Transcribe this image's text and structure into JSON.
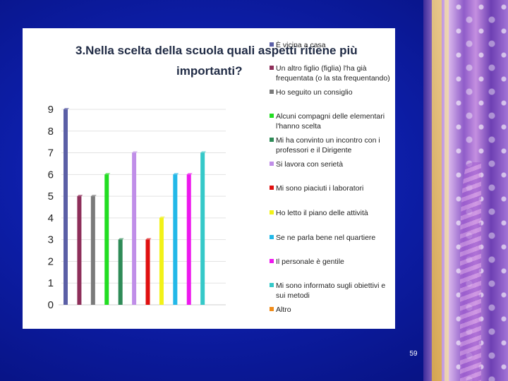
{
  "slide": {
    "page_number": "59"
  },
  "chart_data": {
    "type": "bar",
    "title_lines": [
      "3.Nella scelta della scuola quali aspetti ritiene più",
      "importanti?"
    ],
    "xlabel": "",
    "ylabel": "",
    "ylim": [
      0,
      9
    ],
    "y_ticks": [
      "0",
      "1",
      "2",
      "3",
      "4",
      "5",
      "6",
      "7",
      "8",
      "9"
    ],
    "grid": true,
    "legend_position": "right",
    "categories": [
      "È vicina a casa",
      "Un altro figlio (figlia) l'ha già frequentata (o la sta frequentando)",
      "Ho seguito un consiglio",
      "Alcuni compagni delle elementari l'hanno scelta",
      "Mi ha convinto un incontro con i professori e il Dirigente",
      "Si lavora con serietà",
      "Mi sono piaciuti i laboratori",
      "Ho letto il piano delle attività",
      "Se ne parla bene nel quartiere",
      "Il personale è gentile",
      "Mi sono informato sugli obiettivi e sui metodi",
      "Altro"
    ],
    "series": [
      {
        "name": "È vicina a casa",
        "value": 9,
        "color": "#5b5fa6"
      },
      {
        "name": "Un altro figlio (figlia) l'ha già frequentata (o la sta frequentando)",
        "value": 5,
        "color": "#8e2f5a"
      },
      {
        "name": "Ho seguito un consiglio",
        "value": 5,
        "color": "#7a7a7a"
      },
      {
        "name": "Alcuni compagni delle elementari l'hanno scelta",
        "value": 6,
        "color": "#22dd22"
      },
      {
        "name": "Mi ha convinto un incontro con i professori e il Dirigente",
        "value": 3,
        "color": "#2e8b57"
      },
      {
        "name": "Si lavora con serietà",
        "value": 7,
        "color": "#c08ee8"
      },
      {
        "name": "Mi sono piaciuti i laboratori",
        "value": 3,
        "color": "#e01010"
      },
      {
        "name": "Ho letto il piano delle attività",
        "value": 4,
        "color": "#f2f218"
      },
      {
        "name": "Se ne parla bene nel quartiere",
        "value": 6,
        "color": "#22b8e8"
      },
      {
        "name": "Il personale è gentile",
        "value": 6,
        "color": "#ee18ee"
      },
      {
        "name": "Mi sono informato sugli obiettivi e sui metodi",
        "value": 7,
        "color": "#35c9c9"
      },
      {
        "name": "Altro",
        "value": 0,
        "color": "#f08c1a"
      }
    ],
    "legend_rows": [
      [
        "È vicina a casa"
      ],
      [
        "Un altro figlio (figlia) l'ha già",
        "frequentata (o la sta frequentando)"
      ],
      [
        "Ho seguito un consiglio"
      ],
      [
        "Alcuni compagni delle elementari",
        "l'hanno scelta"
      ],
      [
        "Mi ha convinto un incontro con i",
        "professori  e il Dirigente"
      ],
      [
        "Si lavora con serietà"
      ],
      [
        "Mi sono piaciuti i laboratori"
      ],
      [
        "Ho letto il piano delle attività"
      ],
      [
        "Se ne parla bene nel quartiere"
      ],
      [
        "Il personale è gentile"
      ],
      [
        "Mi sono informato sugli obiettivi e",
        "sui metodi"
      ],
      [
        "Altro"
      ]
    ]
  }
}
